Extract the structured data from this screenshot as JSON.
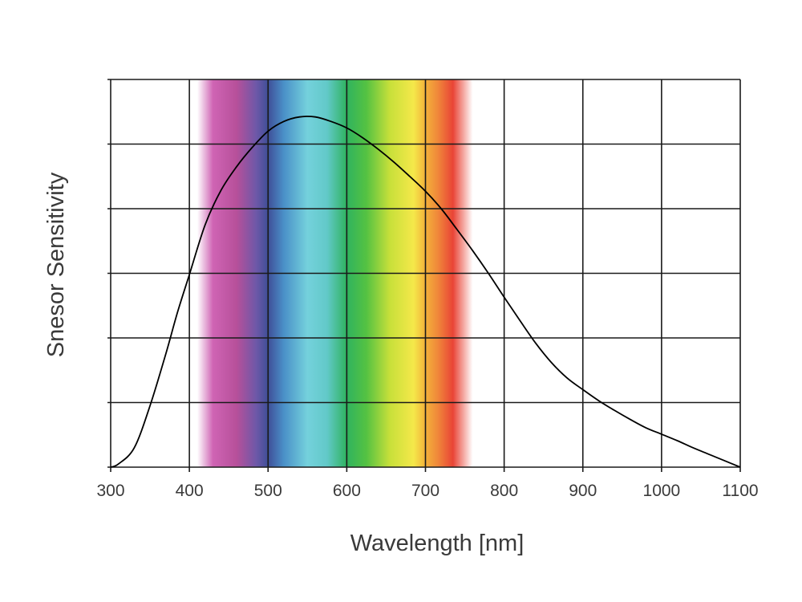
{
  "chart_data": {
    "type": "line",
    "title": "",
    "xlabel": "Wavelength [nm]",
    "ylabel": "Snesor Sensitivity",
    "xlim": [
      300,
      1100
    ],
    "ylim": [
      0,
      6
    ],
    "x_ticks": [
      300,
      400,
      500,
      600,
      700,
      800,
      900,
      1000,
      1100
    ],
    "x_tick_labels": [
      "300",
      "400",
      "500",
      "600",
      "700",
      "800",
      "900",
      "1000",
      "1100"
    ],
    "y_ticks": [
      0,
      1,
      2,
      3,
      4,
      5,
      6
    ],
    "y_tick_labels": [],
    "grid": true,
    "legend": "none",
    "spectrum_band": {
      "range_nm": [
        410,
        760
      ],
      "colors": [
        {
          "nm": 410,
          "color": "#ffffff"
        },
        {
          "nm": 430,
          "color": "#cf64b4"
        },
        {
          "nm": 460,
          "color": "#b7509a"
        },
        {
          "nm": 485,
          "color": "#6d58a8"
        },
        {
          "nm": 500,
          "color": "#3f4f98"
        },
        {
          "nm": 520,
          "color": "#4a90c8"
        },
        {
          "nm": 550,
          "color": "#74d1dc"
        },
        {
          "nm": 575,
          "color": "#62c9c8"
        },
        {
          "nm": 600,
          "color": "#2fb35f"
        },
        {
          "nm": 625,
          "color": "#55c242"
        },
        {
          "nm": 655,
          "color": "#c8e03a"
        },
        {
          "nm": 685,
          "color": "#f5e84a"
        },
        {
          "nm": 700,
          "color": "#f3b13a"
        },
        {
          "nm": 715,
          "color": "#f08a3a"
        },
        {
          "nm": 735,
          "color": "#e94436"
        },
        {
          "nm": 760,
          "color": "#ffffff"
        }
      ]
    },
    "series": [
      {
        "color": "#000000",
        "x": [
          300,
          310,
          330,
          350,
          370,
          385,
          400,
          420,
          440,
          460,
          480,
          500,
          520,
          540,
          560,
          580,
          600,
          620,
          640,
          660,
          680,
          700,
          720,
          740,
          760,
          780,
          800,
          820,
          840,
          860,
          880,
          900,
          920,
          940,
          960,
          980,
          1000,
          1020,
          1040,
          1060,
          1080,
          1100
        ],
        "y": [
          0,
          0.05,
          0.3,
          0.95,
          1.75,
          2.4,
          2.98,
          3.75,
          4.28,
          4.65,
          4.95,
          5.2,
          5.35,
          5.42,
          5.42,
          5.35,
          5.25,
          5.1,
          4.92,
          4.72,
          4.5,
          4.27,
          4.0,
          3.68,
          3.35,
          3.0,
          2.63,
          2.27,
          1.92,
          1.62,
          1.38,
          1.2,
          1.03,
          0.88,
          0.74,
          0.61,
          0.51,
          0.41,
          0.3,
          0.2,
          0.1,
          0.0
        ]
      }
    ]
  }
}
